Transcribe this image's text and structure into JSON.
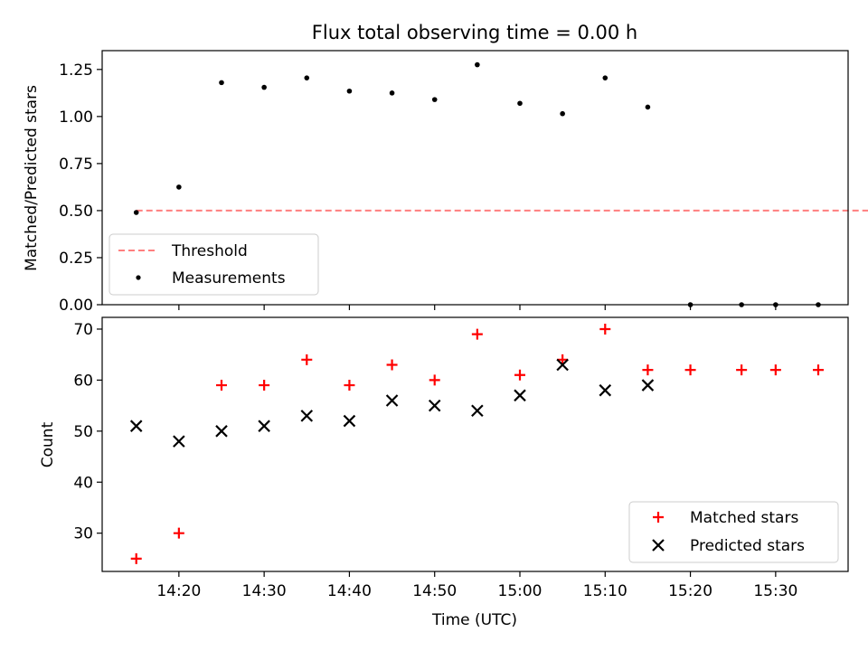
{
  "chart_data": [
    {
      "type": "scatter",
      "title": "Flux total observing time = 0.00 h",
      "xlabel": "",
      "ylabel": "Matched/Predicted stars",
      "ylim": [
        0,
        1.35
      ],
      "yticks": [
        "0.00",
        "0.25",
        "0.50",
        "0.75",
        "1.00",
        "1.25"
      ],
      "ytick_values": [
        0,
        0.25,
        0.5,
        0.75,
        1.0,
        1.25
      ],
      "legend": {
        "position": "lower-left",
        "entries": [
          "Threshold",
          "Measurements"
        ]
      },
      "series": [
        {
          "name": "Threshold",
          "style": "dashed-line",
          "color": "#ff7f7f",
          "x": [
            15,
            135
          ],
          "y": [
            0.5,
            0.5
          ]
        },
        {
          "name": "Measurements",
          "style": "dot",
          "color": "#000000",
          "x": [
            15,
            20,
            25,
            30,
            35,
            40,
            45,
            50,
            55,
            60,
            65,
            70,
            75,
            80,
            86,
            90,
            95
          ],
          "y": [
            0.49,
            0.625,
            1.18,
            1.155,
            1.205,
            1.135,
            1.125,
            1.09,
            1.275,
            1.07,
            1.015,
            1.205,
            1.05,
            0.0,
            0.0,
            0.0,
            0.0
          ]
        }
      ]
    },
    {
      "type": "scatter",
      "title": "",
      "xlabel": "Time (UTC)",
      "ylabel": "Count",
      "xlim": [
        11,
        98.5
      ],
      "ylim": [
        22.5,
        72.3
      ],
      "xticks": [
        "14:20",
        "14:30",
        "14:40",
        "14:50",
        "15:00",
        "15:10",
        "15:20",
        "15:30"
      ],
      "xtick_values": [
        20,
        30,
        40,
        50,
        60,
        70,
        80,
        90
      ],
      "yticks": [
        "30",
        "40",
        "50",
        "60",
        "70"
      ],
      "ytick_values": [
        30,
        40,
        50,
        60,
        70
      ],
      "legend": {
        "position": "lower-right",
        "entries": [
          "Matched stars",
          "Predicted stars"
        ]
      },
      "series": [
        {
          "name": "Matched stars",
          "marker": "plus",
          "color": "#ff0000",
          "x": [
            15,
            20,
            25,
            30,
            35,
            40,
            45,
            50,
            55,
            60,
            65,
            70,
            75,
            80,
            86,
            90,
            95
          ],
          "y": [
            25,
            30,
            59,
            59,
            64,
            59,
            63,
            60,
            69,
            61,
            64,
            70,
            62,
            62,
            62,
            62,
            62
          ]
        },
        {
          "name": "Predicted stars",
          "marker": "x",
          "color": "#000000",
          "x": [
            15,
            20,
            25,
            30,
            35,
            40,
            45,
            50,
            55,
            60,
            65,
            70,
            75
          ],
          "y": [
            51,
            48,
            50,
            51,
            53,
            52,
            56,
            55,
            54,
            57,
            63,
            58,
            59
          ]
        }
      ]
    }
  ]
}
